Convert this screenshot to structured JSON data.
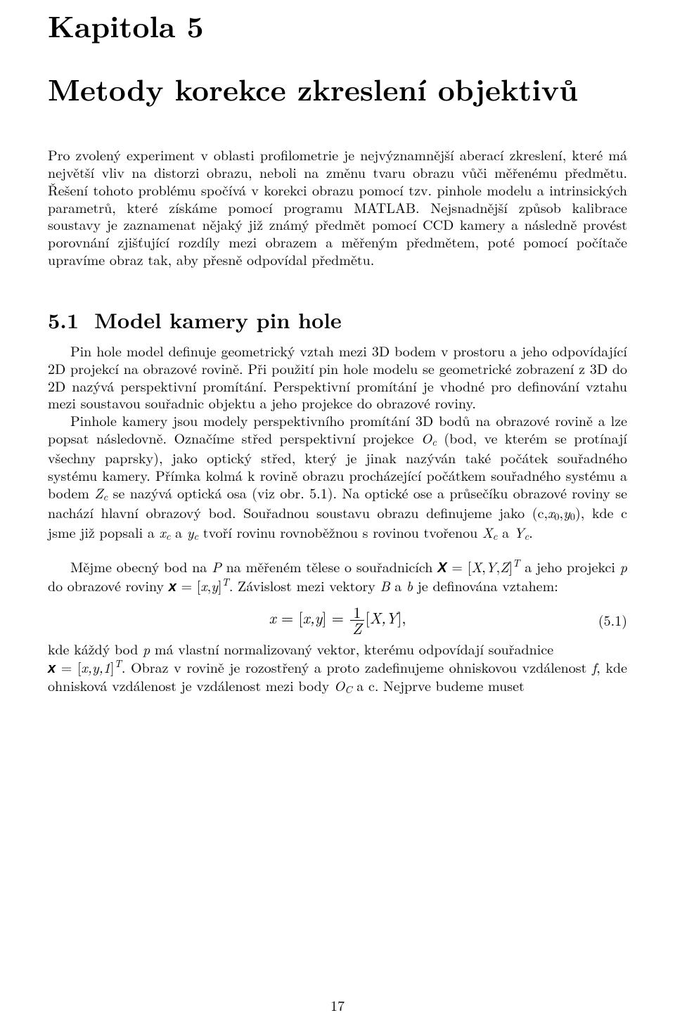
{
  "chapter": {
    "label": "Kapitola 5",
    "title": "Metody korekce zkreslení objektivů"
  },
  "section": {
    "number": "5.1",
    "title": "Model kamery pin hole"
  },
  "intro_paragraph": "Pro zvolený experiment v oblasti profilometrie je nejvýznamnější aberací zkreslení, které má největší vliv na distorzi obrazu, neboli na změnu tvaru obrazu vůči měřenému předmětu. Řešení tohoto problému spočívá v korekci obrazu pomocí tzv. pinhole modelu a intrinsických parametrů, které získáme pomocí programu MATLAB. Nejsnadnější způsob kalibrace soustavy je zaznamenat nějaký již známý předmět pomocí CCD kamery a následně provést porovnání zjišťující rozdíly mezi obrazem a měřeným předmětem, poté pomocí počítače upravíme obraz tak, aby přesně odpovídal předmětu.",
  "p1": "Pin hole model definuje geometrický vztah mezi 3D bodem v prostoru a jeho odpovídající 2D projekcí na obrazové rovině. Při použití pin hole modelu se geometrické zobrazení z 3D do 2D nazývá perspektivní promítání. Perspektivní promítání je vhodné pro definování vztahu mezi soustavou souřadnic objektu a jeho projekce do obrazové roviny.",
  "p2_pre": "Pinhole kamery jsou modely perspektivního promítání 3D bodů na obrazové rovině a lze popsat následovně. Označíme střed perspektivní projekce ",
  "p2_mid1": " (bod, ve kterém se protínají všechny paprsky), jako optický střed, který je jinak nazýván také počátek souřadného systému kamery. Přímka kolmá k rovině obrazu procházející počátkem souřadného systému a bodem ",
  "p2_mid2": " se nazývá optická osa (viz obr. 5.1). Na optické ose a průsečíku obrazové roviny se nachází hlavní obrazový bod. Souřadnou soustavu obrazu definujeme jako (c,",
  "p2_mid3": "), kde c jsme již popsali a ",
  "p2_mid4": " a ",
  "p2_mid5": " tvoří rovinu rovnoběžnou s rovinou tvořenou ",
  "p2_mid6": " a ",
  "p2_end": ".",
  "p3_pre": "Mějme obecný bod na ",
  "p3_mid1": " na měřeném tělese o souřadnicích ",
  "p3_mid2": " a jeho projekci ",
  "p3_mid3": " do obrazové roviny ",
  "p3_mid4": ". Závislost mezi vektory ",
  "p3_mid5": " a ",
  "p3_mid6": " je definována vztahem:",
  "eq": {
    "number": "(5.1)",
    "lhs1": "x",
    "eq1": " = [",
    "xy": "x,y",
    "eq2": "] = ",
    "frac_num": "1",
    "frac_den": "Z",
    "eq3": "[",
    "XY": "X,Y",
    "eq4": "],"
  },
  "p4_pre": "kde káždý bod ",
  "p4_mid1": " má vlastní normalizovaný vektor, kterému odpovídají souřadnice ",
  "p4_mid2": ". Obraz v rovině je rozostřený a proto zadefinujeme ohniskovou vzdálenost ",
  "p4_mid3": ", kde ohnisková vzdálenost je vzdálenost mezi body ",
  "p4_mid4": " a c. Nejprve budeme muset",
  "sym": {
    "Oc_O": "O",
    "Oc_c": "c",
    "Zc_Z": "Z",
    "Zc_c": "c",
    "x0_x": "x",
    "x0_0": "0",
    "y0_y": "y",
    "y0_0": "0",
    "xc_x": "x",
    "xc_c": "c",
    "yc_y": "y",
    "yc_c": "c",
    "Xc_X": "X",
    "Xc_c": "c",
    "Yc_Y": "Y",
    "Yc_c": "c",
    "P": "P",
    "Xbold": "X",
    "X": "X",
    "Y": "Y",
    "Z": "Z",
    "T": "T",
    "p": "p",
    "xbold": "x",
    "x": "x",
    "y": "y",
    "B": "B",
    "b": "b",
    "f": "f",
    "OC_O": "O",
    "OC_C": "C",
    "one": "1",
    "eqbr_open": " = [",
    "eqbr_close": "]",
    "comma": ",",
    "xyone": "x,y,1"
  },
  "page_number": "17"
}
